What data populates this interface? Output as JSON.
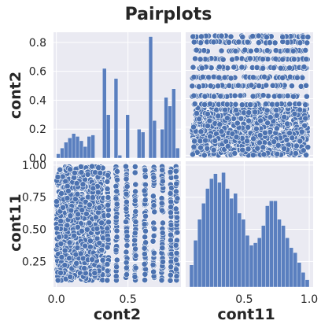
{
  "title": "Pairplots",
  "colors": {
    "panel_bg": "#eaeaf2",
    "grid": "#ffffff",
    "point": "#4c72b0",
    "point_edge": "#ffffff",
    "bar": "#5a7fbf",
    "text": "#262626"
  },
  "chart_data": [
    {
      "type": "bar",
      "panel": "cont2 vs cont2 (histogram)",
      "xlabel": "",
      "ylabel": "cont2",
      "ylim": [
        0,
        0.87
      ],
      "yticks": [
        "0.0",
        "0.2",
        "0.4",
        "0.6",
        "0.8"
      ],
      "bin_range": [
        0.0,
        0.86
      ],
      "bin_width": 0.0258,
      "bin_heights_scaled": [
        0.03,
        0.07,
        0.11,
        0.14,
        0.17,
        0.15,
        0.12,
        0.08,
        0.15,
        0.16,
        0,
        0,
        0.62,
        0.3,
        0,
        0.55,
        0.02,
        0,
        0.3,
        0,
        0,
        0.2,
        0.18,
        0,
        0.84,
        0.26,
        0,
        0.2,
        0.42,
        0.36,
        0.48,
        0.07
      ],
      "grid": true
    },
    {
      "type": "scatter",
      "panel": "cont2 (y) vs cont11 (x)",
      "x_variable": "cont11",
      "y_variable": "cont2",
      "xlim": [
        0.05,
        1.03
      ],
      "ylim": [
        -0.02,
        0.87
      ],
      "discrete_y_levels": [
        0.36,
        0.42,
        0.49,
        0.55,
        0.62,
        0.68,
        0.74,
        0.8,
        0.84
      ],
      "continuous_y_range": [
        0.0,
        0.34
      ],
      "grid": true
    },
    {
      "type": "scatter",
      "panel": "cont11 (y) vs cont2 (x)",
      "x_variable": "cont2",
      "y_variable": "cont11",
      "xlabel": "cont2",
      "ylabel": "cont11",
      "xlim": [
        -0.02,
        0.87
      ],
      "ylim": [
        0.05,
        1.03
      ],
      "xticks": [
        "0.0",
        "0.5"
      ],
      "yticks": [
        "0.25",
        "0.50",
        "0.75",
        "1.00"
      ],
      "grid": true
    },
    {
      "type": "bar",
      "panel": "cont11 vs cont11 (histogram)",
      "xlabel": "cont11",
      "xlim": [
        0.05,
        1.03
      ],
      "xticks": [
        "0.5",
        "1.0"
      ],
      "bin_range": [
        0.08,
        1.0
      ],
      "bin_heights_scaled": [
        0.18,
        0.38,
        0.55,
        0.68,
        0.8,
        0.88,
        0.92,
        0.85,
        0.93,
        0.8,
        0.72,
        0.76,
        0.6,
        0.55,
        0.42,
        0.34,
        0.36,
        0.4,
        0.5,
        0.66,
        0.7,
        0.7,
        0.55,
        0.5,
        0.4,
        0.32,
        0.28,
        0.2,
        0.12,
        0.06
      ],
      "grid": true
    }
  ]
}
